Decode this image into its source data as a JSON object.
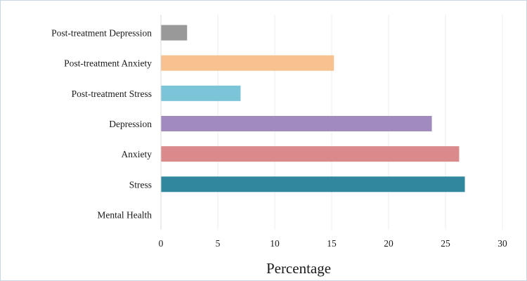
{
  "chart_data": {
    "type": "bar",
    "orientation": "horizontal",
    "categories": [
      "Post-treatment Depression",
      "Post-treatment Anxiety",
      "Post-treatment Stress",
      "Depression",
      "Anxiety",
      "Stress",
      "Mental Health"
    ],
    "values": [
      2.3,
      15.2,
      7.0,
      23.8,
      26.2,
      26.7,
      0
    ],
    "colors": [
      "#999999",
      "#f8c190",
      "#7cc4d8",
      "#a18abd",
      "#da8a8a",
      "#30879e",
      "#ffffff"
    ],
    "xlabel": "Percentage",
    "ylabel": "",
    "title": "",
    "xlim": [
      0,
      30
    ],
    "xticks": [
      0,
      5,
      10,
      15,
      20,
      25,
      30
    ],
    "grid": true
  }
}
